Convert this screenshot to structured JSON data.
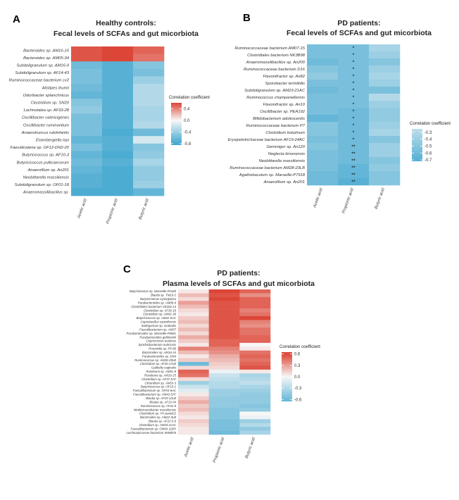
{
  "colors": {
    "neg": "#41a7cf",
    "mid": "#f7f7f7",
    "pos": "#dc4637"
  },
  "chart_data": [
    {
      "panel": "A",
      "type": "heatmap",
      "title_line1": "Healthy controls:",
      "title_line2": "Fecal levels of SCFAs and gut micorbiota",
      "columns": [
        "Acetic acid",
        "Propionic acid",
        "Butyric acid"
      ],
      "legend_title": "Correlation coefficient",
      "legend_ticks": [
        "0.4",
        "0.0",
        "-0.4",
        "-0.8"
      ],
      "legend_values": [
        0.4,
        0.0,
        -0.4,
        -0.8
      ],
      "vmin": -0.85,
      "vmax": 0.6,
      "rows": [
        {
          "label": "Bacteroides sp. AM16-15",
          "stars": "",
          "values": [
            0.55,
            0.6,
            0.5
          ]
        },
        {
          "label": "Bacteroides sp. AM05-34",
          "stars": "",
          "values": [
            0.55,
            0.6,
            0.45
          ]
        },
        {
          "label": "Subdoligranulum sp. AM16-9",
          "stars": "",
          "values": [
            -0.6,
            -0.7,
            -0.5
          ]
        },
        {
          "label": "Subdoligranulum sp. AF14-43",
          "stars": "",
          "values": [
            -0.55,
            -0.7,
            -0.55
          ]
        },
        {
          "label": "Ruminococcaceae bacterium cv2",
          "stars": "",
          "values": [
            -0.55,
            -0.7,
            -0.4
          ]
        },
        {
          "label": "Alistipes ihumii",
          "stars": "",
          "values": [
            -0.6,
            -0.7,
            -0.3
          ]
        },
        {
          "label": "Odoribacter splanchnicus",
          "stars": "",
          "values": [
            -0.65,
            -0.7,
            -0.3
          ]
        },
        {
          "label": "Clostridium sp. SN20",
          "stars": "",
          "values": [
            -0.5,
            -0.7,
            -0.3
          ]
        },
        {
          "label": "Lachnotalea sp. AF33-28",
          "stars": "",
          "values": [
            -0.45,
            -0.7,
            -0.35
          ]
        },
        {
          "label": "Oscillibacter valericigenes",
          "stars": "",
          "values": [
            -0.55,
            -0.7,
            -0.35
          ]
        },
        {
          "label": "Oscillibacter ruminantium",
          "stars": "",
          "values": [
            -0.55,
            -0.7,
            -0.3
          ]
        },
        {
          "label": "Anaerotruncus rubiinfantis",
          "stars": "",
          "values": [
            -0.55,
            -0.75,
            -0.6
          ]
        },
        {
          "label": "Eisenbergiella tayi",
          "stars": "",
          "values": [
            -0.65,
            -0.7,
            -0.15
          ]
        },
        {
          "label": "Faecalicatena sp. OF12-DN2-20",
          "stars": "",
          "values": [
            -0.55,
            -0.7,
            -0.5
          ]
        },
        {
          "label": "Butyricicoccus sp. AF10-3",
          "stars": "",
          "values": [
            -0.65,
            -0.75,
            -0.45
          ]
        },
        {
          "label": "Butyricicoccus pullicaecorum",
          "stars": "",
          "values": [
            -0.6,
            -0.7,
            -0.35
          ]
        },
        {
          "label": "Anaerofilum sp. An201",
          "stars": "",
          "values": [
            -0.65,
            -0.75,
            -0.45
          ]
        },
        {
          "label": "Neobittarella massiliensis",
          "stars": "",
          "values": [
            -0.7,
            -0.75,
            -0.45
          ]
        },
        {
          "label": "Subdoligranulum sp. OF01-18",
          "stars": "",
          "values": [
            -0.7,
            -0.75,
            -0.4
          ]
        },
        {
          "label": "Anaeromassilibacillus sp.",
          "stars": "",
          "values": [
            -0.75,
            -0.75,
            -0.65
          ]
        }
      ]
    },
    {
      "panel": "B",
      "type": "heatmap",
      "title_line1": "PD patients:",
      "title_line2": "Fecal levels of SCFAs and gut micorbiota",
      "columns": [
        "Acetic acid",
        "Propionic acid",
        "Butyric acid"
      ],
      "legend_title": "Correlation coefficient",
      "legend_ticks": [
        "-0.3",
        "-0.4",
        "-0.5",
        "-0.6",
        "-0.7"
      ],
      "legend_values": [
        -0.3,
        -0.4,
        -0.5,
        -0.6,
        -0.7
      ],
      "vmin": -0.72,
      "vmax": -0.25,
      "rows": [
        {
          "label": "Ruminococcaceae bacterium AM07-15",
          "stars": "*",
          "values": [
            -0.55,
            -0.55,
            -0.35
          ]
        },
        {
          "label": "Clostridiales bacterium NK3B98",
          "stars": "*",
          "values": [
            -0.55,
            -0.55,
            -0.4
          ]
        },
        {
          "label": "Anaeromassilibacillus sp. An200",
          "stars": "*",
          "values": [
            -0.6,
            -0.55,
            -0.5
          ]
        },
        {
          "label": "Ruminococcaceae bacterium D16",
          "stars": "*",
          "values": [
            -0.5,
            -0.55,
            -0.4
          ]
        },
        {
          "label": "Flavonifractor sp. An82",
          "stars": "*",
          "values": [
            -0.45,
            -0.55,
            -0.35
          ]
        },
        {
          "label": "Sporobacter termitidis",
          "stars": "*",
          "values": [
            -0.55,
            -0.55,
            -0.4
          ]
        },
        {
          "label": "Subdoligranulum sp. AM23-21AC",
          "stars": "*",
          "values": [
            -0.6,
            -0.55,
            -0.55
          ]
        },
        {
          "label": "Ruminococcus champanellensis",
          "stars": "*",
          "values": [
            -0.55,
            -0.55,
            -0.3
          ]
        },
        {
          "label": "Flavonifractor sp. An10",
          "stars": "*",
          "values": [
            -0.55,
            -0.55,
            -0.4
          ]
        },
        {
          "label": "Oscillibacter sp. PEA192",
          "stars": "*",
          "values": [
            -0.55,
            -0.6,
            -0.45
          ]
        },
        {
          "label": "Bifidobacterium adolescentis",
          "stars": "*",
          "values": [
            -0.65,
            -0.6,
            -0.45
          ]
        },
        {
          "label": "Ruminococcaceae bacterium P7",
          "stars": "*",
          "values": [
            -0.5,
            -0.6,
            -0.4
          ]
        },
        {
          "label": "Clostridium botulinum",
          "stars": "*",
          "values": [
            -0.5,
            -0.6,
            -0.35
          ]
        },
        {
          "label": "Erysipelotrichaceae bacterium AF19-24AC",
          "stars": "*",
          "values": [
            -0.55,
            -0.6,
            -0.5
          ]
        },
        {
          "label": "Gemmiger sp. An120",
          "stars": "**",
          "values": [
            -0.5,
            -0.6,
            -0.4
          ]
        },
        {
          "label": "Neglecta timonensis",
          "stars": "**",
          "values": [
            -0.55,
            -0.6,
            -0.4
          ]
        },
        {
          "label": "Neobittarella massiliensis",
          "stars": "**",
          "values": [
            -0.55,
            -0.6,
            -0.5
          ]
        },
        {
          "label": "Ruminococcaceae bacterium AM28-23LB",
          "stars": "**",
          "values": [
            -0.55,
            -0.65,
            -0.45
          ]
        },
        {
          "label": "Agathobaculum sp. Marseille-P7918",
          "stars": "**",
          "values": [
            -0.6,
            -0.65,
            -0.5
          ]
        },
        {
          "label": "Anaerofilum sp. An201",
          "stars": "**",
          "values": [
            -0.6,
            -0.7,
            -0.5
          ]
        }
      ]
    },
    {
      "panel": "C",
      "type": "heatmap",
      "title_line1": "PD patients:",
      "title_line2": "Plasma levels of SCFAs and gut micorbiota",
      "columns": [
        "Acetic acid",
        "Propionic acid",
        "Butyric acid"
      ],
      "legend_title": "Correlation coefficient",
      "legend_ticks": [
        "0.6",
        "0.3",
        "0.0",
        "-0.3",
        "-0.6"
      ],
      "legend_values": [
        0.6,
        0.3,
        0.0,
        -0.3,
        -0.6
      ],
      "vmin": -0.65,
      "vmax": 0.65,
      "rows": [
        {
          "label": "Butyricimonas sp. Marseille-P2440",
          "stars": "",
          "values": [
            0.05,
            0.6,
            0.5
          ]
        },
        {
          "label": "Blautia sp. TM10-2",
          "stars": "",
          "values": [
            0.2,
            0.55,
            0.35
          ]
        },
        {
          "label": "Butyricimonas synergistica",
          "stars": "",
          "values": [
            0.1,
            0.6,
            0.5
          ]
        },
        {
          "label": "Parabacteroides sp. AM08-6",
          "stars": "",
          "values": [
            0.3,
            0.55,
            0.5
          ]
        },
        {
          "label": "Clostridiales bacterium VE202-13",
          "stars": "",
          "values": [
            0.2,
            0.55,
            0.5
          ]
        },
        {
          "label": "Clostridium sp. AF36-18",
          "stars": "",
          "values": [
            0.1,
            0.55,
            0.4
          ]
        },
        {
          "label": "Clostridium sp. AM42-36",
          "stars": "",
          "values": [
            0.05,
            0.55,
            0.45
          ]
        },
        {
          "label": "Butyricicoccus sp. AM42-5AC",
          "stars": "",
          "values": [
            0.15,
            0.55,
            0.6
          ]
        },
        {
          "label": "Coprobacillus cateniformis",
          "stars": "",
          "values": [
            0.2,
            0.55,
            0.4
          ]
        },
        {
          "label": "Sedegaricae sp. seabaitis",
          "stars": "",
          "values": [
            0.1,
            0.55,
            0.35
          ]
        },
        {
          "label": "Faecalibacterium sp. AM57",
          "stars": "",
          "values": [
            0.2,
            0.55,
            0.45
          ]
        },
        {
          "label": "Parabacteroides sp. Marseille-P4001",
          "stars": "",
          "values": [
            0.1,
            0.55,
            0.45
          ]
        },
        {
          "label": "Parabacteroides goldsteinii",
          "stars": "",
          "values": [
            0.25,
            0.55,
            0.5
          ]
        },
        {
          "label": "Coprococcus eutactus",
          "stars": "",
          "values": [
            0.15,
            0.5,
            0.5
          ]
        },
        {
          "label": "Synchiobacterium nutricosis",
          "stars": "",
          "values": [
            0.05,
            0.5,
            0.0
          ]
        },
        {
          "label": "Prevotella sp. P5-86",
          "stars": "",
          "values": [
            0.4,
            0.4,
            0.05
          ]
        },
        {
          "label": "Bacteroides sp. AM16-24",
          "stars": "",
          "values": [
            0.2,
            0.35,
            0.45
          ]
        },
        {
          "label": "Parabacteroides sp. DN4",
          "stars": "",
          "values": [
            0.05,
            0.25,
            0.5
          ]
        },
        {
          "label": "Ruminococcus sp. AM28-29LB",
          "stars": "",
          "values": [
            0.15,
            0.2,
            0.45
          ]
        },
        {
          "label": "Clostridium sp. AF20-17LB",
          "stars": "",
          "values": [
            -0.6,
            0.15,
            0.5
          ]
        },
        {
          "label": "Gabbella vaginalis",
          "stars": "",
          "values": [
            0.1,
            0.1,
            0.55
          ]
        },
        {
          "label": "Roseburia sp. AM51-8",
          "stars": "",
          "values": [
            0.5,
            -0.05,
            0.05
          ]
        },
        {
          "label": "Roseburia sp. AM16-25",
          "stars": "",
          "values": [
            0.45,
            -0.2,
            -0.35
          ]
        },
        {
          "label": "Clostridium sp. AF37-5AT",
          "stars": "",
          "values": [
            0.1,
            -0.25,
            -0.3
          ]
        },
        {
          "label": "Clostridium sp. AM33-3",
          "stars": "",
          "values": [
            -0.4,
            -0.3,
            -0.25
          ]
        },
        {
          "label": "Butyricicoccus sp. OF10-2",
          "stars": "",
          "values": [
            -0.2,
            -0.3,
            -0.35
          ]
        },
        {
          "label": "Faecalibacterium sp. OF03-6AC",
          "stars": "",
          "values": [
            -0.1,
            -0.4,
            -0.4
          ]
        },
        {
          "label": "Faecalibacterium sp. AM43-5AT",
          "stars": "",
          "values": [
            0.05,
            -0.4,
            -0.45
          ]
        },
        {
          "label": "Blautia sp. AF25-12LB",
          "stars": "",
          "values": [
            0.15,
            -0.45,
            -0.45
          ]
        },
        {
          "label": "Blautia sp. AF19-34",
          "stars": "",
          "values": [
            0.25,
            -0.45,
            -0.45
          ]
        },
        {
          "label": "Ruminococcus sp. AF31-8",
          "stars": "",
          "values": [
            0.15,
            -0.45,
            -0.5
          ]
        },
        {
          "label": "Mediterraneibacter massiliensis",
          "stars": "",
          "values": [
            0.2,
            -0.5,
            -0.45
          ]
        },
        {
          "label": "Clostridium sp. YH-panel22",
          "stars": "",
          "values": [
            0.1,
            -0.5,
            0.0
          ]
        },
        {
          "label": "Bacteroides sp. AM22-3LB",
          "stars": "",
          "values": [
            0.05,
            -0.5,
            -0.05
          ]
        },
        {
          "label": "Blautia sp. AF22-5-6",
          "stars": "",
          "values": [
            0.15,
            -0.55,
            -0.4
          ]
        },
        {
          "label": "Clostridium sp. AM34-11AC",
          "stars": "",
          "values": [
            0.1,
            -0.55,
            -0.3
          ]
        },
        {
          "label": "Faecalibacterium sp. OM04-11BH",
          "stars": "",
          "values": [
            0.05,
            -0.55,
            -0.45
          ]
        },
        {
          "label": "Lachnospiraceae bacterium SM6B76",
          "stars": "",
          "values": [
            0.05,
            -0.6,
            -0.35
          ]
        }
      ]
    }
  ]
}
